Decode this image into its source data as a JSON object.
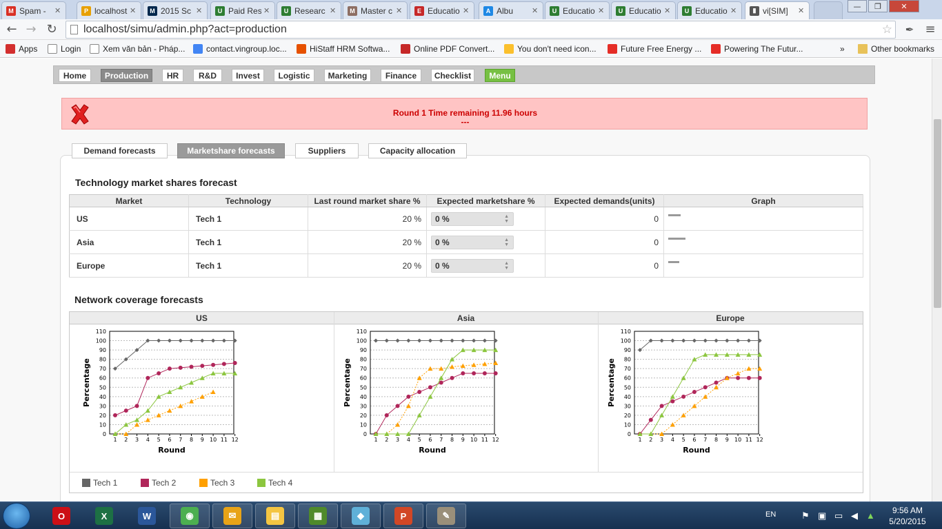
{
  "browser": {
    "tabs": [
      {
        "label": "Spam -",
        "icon": "gmail-icon",
        "color": "#d93025",
        "glyph": "M"
      },
      {
        "label": "localhost",
        "icon": "phpmyadmin-icon",
        "color": "#e8a000",
        "glyph": "P"
      },
      {
        "label": "2015 Sc",
        "icon": "michigan-icon",
        "color": "#00274c",
        "glyph": "M"
      },
      {
        "label": "Paid Res",
        "icon": "shield-icon",
        "color": "#2e7d32",
        "glyph": "U"
      },
      {
        "label": "Researc",
        "icon": "shield-icon",
        "color": "#2e7d32",
        "glyph": "U"
      },
      {
        "label": "Master c",
        "icon": "building-icon",
        "color": "#8d6e63",
        "glyph": "M"
      },
      {
        "label": "Educatio",
        "icon": "book-icon",
        "color": "#c62828",
        "glyph": "E"
      },
      {
        "label": "Albu",
        "icon": "cloud-icon",
        "color": "#1e88e5",
        "glyph": "A"
      },
      {
        "label": "Educatio",
        "icon": "shield-icon",
        "color": "#2e7d32",
        "glyph": "U"
      },
      {
        "label": "Educatio",
        "icon": "shield-icon",
        "color": "#2e7d32",
        "glyph": "U"
      },
      {
        "label": "Educatio",
        "icon": "shield-icon",
        "color": "#2e7d32",
        "glyph": "U"
      },
      {
        "label": "vi[SIM]",
        "icon": "chart-icon",
        "color": "#555555",
        "glyph": "▮",
        "active": true
      }
    ],
    "url": "localhost/simu/admin.php?act=production",
    "bookmarks": [
      {
        "label": "Apps",
        "icon": "apps-grid-icon",
        "color": "#d32f2f"
      },
      {
        "label": "Login",
        "icon": "page-icon",
        "color": "#ffffff"
      },
      {
        "label": "Xem văn bản - Pháp...",
        "icon": "page-icon",
        "color": "#ffffff"
      },
      {
        "label": "contact.vingroup.loc...",
        "icon": "google-icon",
        "color": "#4285f4"
      },
      {
        "label": "HiStaff HRM Softwa...",
        "icon": "check-icon",
        "color": "#e65100"
      },
      {
        "label": "Online PDF Convert...",
        "icon": "pdf-icon",
        "color": "#c62828"
      },
      {
        "label": "You don't need icon...",
        "icon": "bulb-icon",
        "color": "#fbc02d"
      },
      {
        "label": "Future Free Energy ...",
        "icon": "youtube-icon",
        "color": "#e52d27"
      },
      {
        "label": "Powering The Futur...",
        "icon": "youtube-icon",
        "color": "#e52d27"
      }
    ],
    "more_bookmarks": "»",
    "other_bookmarks": "Other bookmarks"
  },
  "menu": [
    {
      "label": "Home"
    },
    {
      "label": "Production",
      "active": true
    },
    {
      "label": "HR"
    },
    {
      "label": "R&D"
    },
    {
      "label": "Invest"
    },
    {
      "label": "Logistic"
    },
    {
      "label": "Marketing"
    },
    {
      "label": "Finance"
    },
    {
      "label": "Checklist"
    },
    {
      "label": "Menu",
      "highlight": true
    }
  ],
  "alert": {
    "line1": "Round 1 Time remaining 11.96 hours",
    "line2": "---",
    "color": "#cc0000"
  },
  "subtabs": [
    {
      "label": "Demand forecasts"
    },
    {
      "label": "Marketshare forecasts",
      "active": true
    },
    {
      "label": "Suppliers"
    },
    {
      "label": "Capacity allocation"
    }
  ],
  "tech_section": {
    "title": "Technology market shares forecast",
    "columns": [
      "Market",
      "Technology",
      "Last round market share %",
      "Expected marketshare %",
      "Expected demands(units)",
      "Graph"
    ],
    "rows": [
      {
        "market": "US",
        "technology": "Tech 1",
        "last_share": "20 %",
        "expected_share": "0 %",
        "expected_demand": "0",
        "graph_level": 0.5
      },
      {
        "market": "Asia",
        "technology": "Tech 1",
        "last_share": "20 %",
        "expected_share": "0 %",
        "expected_demand": "0",
        "graph_level": 0.7
      },
      {
        "market": "Europe",
        "technology": "Tech 1",
        "last_share": "20 %",
        "expected_share": "0 %",
        "expected_demand": "0",
        "graph_level": 0.45
      }
    ]
  },
  "network_section": {
    "title": "Network coverage forecasts",
    "regions": [
      "US",
      "Asia",
      "Europe"
    ],
    "legend": [
      {
        "name": "Tech 1",
        "color": "#666666"
      },
      {
        "name": "Tech 2",
        "color": "#b0265a"
      },
      {
        "name": "Tech 3",
        "color": "#ffa000"
      },
      {
        "name": "Tech 4",
        "color": "#8cc63f"
      }
    ]
  },
  "chart_data": [
    {
      "type": "line",
      "title": "US",
      "xlabel": "Round",
      "ylabel": "Percentage",
      "x": [
        1,
        2,
        3,
        4,
        5,
        6,
        7,
        8,
        9,
        10,
        11,
        12
      ],
      "ylim": [
        0,
        110
      ],
      "yticks": [
        0,
        10,
        20,
        30,
        40,
        50,
        60,
        70,
        80,
        90,
        100,
        110
      ],
      "grid": true,
      "legend": "bottom",
      "series": [
        {
          "name": "Tech 1",
          "values": [
            70,
            80,
            90,
            100,
            100,
            100,
            100,
            100,
            100,
            100,
            100,
            100
          ]
        },
        {
          "name": "Tech 2",
          "values": [
            20,
            25,
            30,
            60,
            65,
            70,
            71,
            72,
            73,
            74,
            75,
            76
          ]
        },
        {
          "name": "Tech 3",
          "values": [
            0,
            0,
            10,
            15,
            20,
            25,
            30,
            35,
            40,
            45,
            null,
            null
          ]
        },
        {
          "name": "Tech 4",
          "values": [
            0,
            10,
            15,
            25,
            40,
            45,
            50,
            55,
            60,
            65,
            65,
            65
          ]
        }
      ]
    },
    {
      "type": "line",
      "title": "Asia",
      "xlabel": "Round",
      "ylabel": "Percentage",
      "x": [
        1,
        2,
        3,
        4,
        5,
        6,
        7,
        8,
        9,
        10,
        11,
        12
      ],
      "ylim": [
        0,
        110
      ],
      "yticks": [
        0,
        10,
        20,
        30,
        40,
        50,
        60,
        70,
        80,
        90,
        100,
        110
      ],
      "grid": true,
      "legend": "bottom",
      "series": [
        {
          "name": "Tech 1",
          "values": [
            100,
            100,
            100,
            100,
            100,
            100,
            100,
            100,
            100,
            100,
            100,
            100
          ]
        },
        {
          "name": "Tech 2",
          "values": [
            0,
            20,
            30,
            40,
            45,
            50,
            55,
            60,
            65,
            65,
            65,
            65
          ]
        },
        {
          "name": "Tech 3",
          "values": [
            0,
            0,
            10,
            30,
            60,
            70,
            70,
            72,
            73,
            74,
            75,
            76
          ]
        },
        {
          "name": "Tech 4",
          "values": [
            0,
            0,
            0,
            0,
            20,
            40,
            60,
            80,
            90,
            90,
            90,
            90
          ]
        }
      ]
    },
    {
      "type": "line",
      "title": "Europe",
      "xlabel": "Round",
      "ylabel": "Percentage",
      "x": [
        1,
        2,
        3,
        4,
        5,
        6,
        7,
        8,
        9,
        10,
        11,
        12
      ],
      "ylim": [
        0,
        110
      ],
      "yticks": [
        0,
        10,
        20,
        30,
        40,
        50,
        60,
        70,
        80,
        90,
        100,
        110
      ],
      "grid": true,
      "legend": "bottom",
      "series": [
        {
          "name": "Tech 1",
          "values": [
            90,
            100,
            100,
            100,
            100,
            100,
            100,
            100,
            100,
            100,
            100,
            100
          ]
        },
        {
          "name": "Tech 2",
          "values": [
            0,
            15,
            30,
            35,
            40,
            45,
            50,
            55,
            60,
            60,
            60,
            60
          ]
        },
        {
          "name": "Tech 3",
          "values": [
            0,
            0,
            0,
            10,
            20,
            30,
            40,
            50,
            60,
            65,
            70,
            70
          ]
        },
        {
          "name": "Tech 4",
          "values": [
            0,
            0,
            20,
            40,
            60,
            80,
            85,
            85,
            85,
            85,
            85,
            85
          ]
        }
      ]
    }
  ],
  "taskbar": {
    "apps": [
      {
        "name": "opera-icon",
        "color": "#cc0f16",
        "glyph": "O"
      },
      {
        "name": "excel-icon",
        "color": "#1d7044",
        "glyph": "X"
      },
      {
        "name": "word-icon",
        "color": "#2b579a",
        "glyph": "W"
      },
      {
        "name": "chrome-icon",
        "color": "#4caf50",
        "glyph": "◉"
      },
      {
        "name": "outlook-icon",
        "color": "#e8a317",
        "glyph": "✉"
      },
      {
        "name": "explorer-icon",
        "color": "#f4c542",
        "glyph": "▤"
      },
      {
        "name": "project-icon",
        "color": "#4f8a2b",
        "glyph": "▦"
      },
      {
        "name": "eraser-icon",
        "color": "#5fb0d8",
        "glyph": "◆"
      },
      {
        "name": "powerpoint-icon",
        "color": "#d24726",
        "glyph": "P"
      },
      {
        "name": "paint-icon",
        "color": "#9a8f7a",
        "glyph": "✎"
      }
    ],
    "language": "EN",
    "time": "9:56 AM",
    "date": "5/20/2015"
  }
}
